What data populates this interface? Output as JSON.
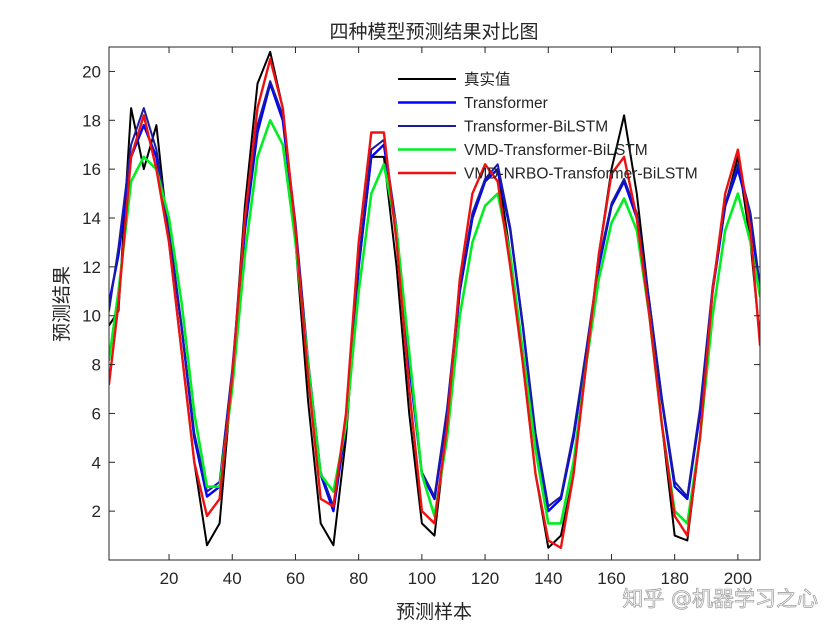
{
  "watermark": "知乎 @机器学习之心",
  "chart_data": {
    "type": "line",
    "title": "四种模型预测结果对比图",
    "xlabel": "预测样本",
    "ylabel": "预测结果",
    "xlim": [
      1,
      207
    ],
    "ylim": [
      0,
      21
    ],
    "xticks": [
      20,
      40,
      60,
      80,
      100,
      120,
      140,
      160,
      180,
      200
    ],
    "yticks": [
      2,
      4,
      6,
      8,
      10,
      12,
      14,
      16,
      18,
      20
    ],
    "grid": false,
    "legend_position": "top-right",
    "x_key": [
      1,
      4,
      8,
      12,
      16,
      20,
      24,
      28,
      32,
      36,
      40,
      44,
      48,
      52,
      56,
      60,
      64,
      68,
      72,
      76,
      80,
      84,
      88,
      92,
      96,
      100,
      104,
      108,
      112,
      116,
      120,
      124,
      128,
      132,
      136,
      140,
      144,
      148,
      152,
      156,
      160,
      164,
      168,
      172,
      176,
      180,
      184,
      188,
      192,
      196,
      200,
      204,
      207
    ],
    "series": [
      {
        "name": "真实值",
        "color": "#000000",
        "values": [
          9.6,
          10.2,
          18.5,
          16.0,
          17.8,
          13.0,
          8.5,
          4.0,
          0.6,
          1.5,
          7.5,
          14.5,
          19.5,
          20.8,
          18.5,
          13.0,
          6.5,
          1.5,
          0.6,
          5.0,
          12.0,
          16.5,
          16.5,
          12.0,
          6.0,
          1.5,
          1.0,
          5.5,
          11.0,
          14.0,
          15.5,
          16.0,
          12.5,
          8.0,
          3.5,
          0.5,
          1.0,
          3.5,
          8.0,
          12.5,
          16.0,
          18.2,
          15.0,
          10.5,
          5.5,
          1.0,
          0.8,
          5.0,
          11.0,
          14.5,
          16.5,
          13.0,
          9.0
        ]
      },
      {
        "name": "Transformer",
        "color": "#0000ff",
        "values": [
          10.5,
          12.5,
          16.5,
          17.8,
          16.5,
          13.5,
          9.5,
          5.0,
          2.6,
          3.0,
          7.5,
          13.5,
          17.5,
          19.5,
          18.0,
          13.5,
          8.0,
          3.5,
          2.0,
          5.5,
          12.0,
          16.5,
          17.0,
          13.5,
          8.0,
          3.5,
          2.5,
          6.0,
          11.0,
          14.0,
          15.5,
          16.0,
          13.5,
          9.5,
          5.0,
          2.0,
          2.5,
          5.0,
          8.5,
          12.0,
          14.5,
          15.5,
          14.0,
          10.5,
          6.5,
          3.0,
          2.5,
          6.0,
          11.0,
          14.5,
          16.0,
          14.0,
          11.0
        ]
      },
      {
        "name": "Transformer-BiLSTM",
        "color": "#1a1aa6",
        "values": [
          10.2,
          12.8,
          17.0,
          18.5,
          16.8,
          13.5,
          9.5,
          5.2,
          2.8,
          3.2,
          7.8,
          13.8,
          17.8,
          19.6,
          18.2,
          13.8,
          8.2,
          3.6,
          2.2,
          5.6,
          12.2,
          16.8,
          17.2,
          13.6,
          8.2,
          3.6,
          2.6,
          6.2,
          11.2,
          14.2,
          15.6,
          16.2,
          13.6,
          9.6,
          5.2,
          2.2,
          2.6,
          5.2,
          8.6,
          12.2,
          14.6,
          15.6,
          14.2,
          10.6,
          6.6,
          3.2,
          2.6,
          6.2,
          11.2,
          14.6,
          16.2,
          14.2,
          11.2
        ]
      },
      {
        "name": "VMD-Transformer-BiLSTM",
        "color": "#00ee22",
        "values": [
          8.2,
          11.0,
          15.5,
          16.5,
          16.0,
          14.0,
          10.5,
          6.0,
          3.0,
          3.0,
          7.0,
          12.5,
          16.5,
          18.0,
          17.0,
          13.0,
          8.0,
          3.5,
          2.8,
          5.5,
          11.0,
          15.0,
          16.2,
          13.5,
          8.5,
          3.5,
          1.8,
          5.0,
          10.0,
          13.0,
          14.5,
          15.0,
          12.5,
          8.5,
          4.5,
          1.5,
          1.5,
          4.0,
          8.0,
          11.5,
          13.8,
          14.8,
          13.5,
          10.0,
          5.5,
          2.0,
          1.5,
          5.0,
          10.0,
          13.5,
          15.0,
          13.0,
          10.8
        ]
      },
      {
        "name": "VMD-NRBO-Transformer-BiLSTM",
        "color": "#ee1111",
        "values": [
          7.2,
          10.5,
          16.5,
          18.2,
          16.0,
          13.0,
          8.5,
          4.0,
          1.8,
          2.5,
          7.5,
          14.0,
          18.5,
          20.5,
          18.5,
          13.5,
          7.5,
          2.5,
          2.2,
          6.0,
          13.0,
          17.5,
          17.5,
          13.0,
          7.0,
          2.0,
          1.5,
          5.5,
          11.5,
          15.0,
          16.2,
          15.5,
          12.0,
          8.0,
          3.5,
          0.8,
          0.5,
          3.5,
          8.0,
          12.5,
          15.8,
          16.5,
          14.0,
          10.0,
          5.5,
          1.8,
          1.0,
          5.0,
          11.0,
          15.0,
          16.8,
          13.5,
          8.8
        ]
      }
    ]
  }
}
